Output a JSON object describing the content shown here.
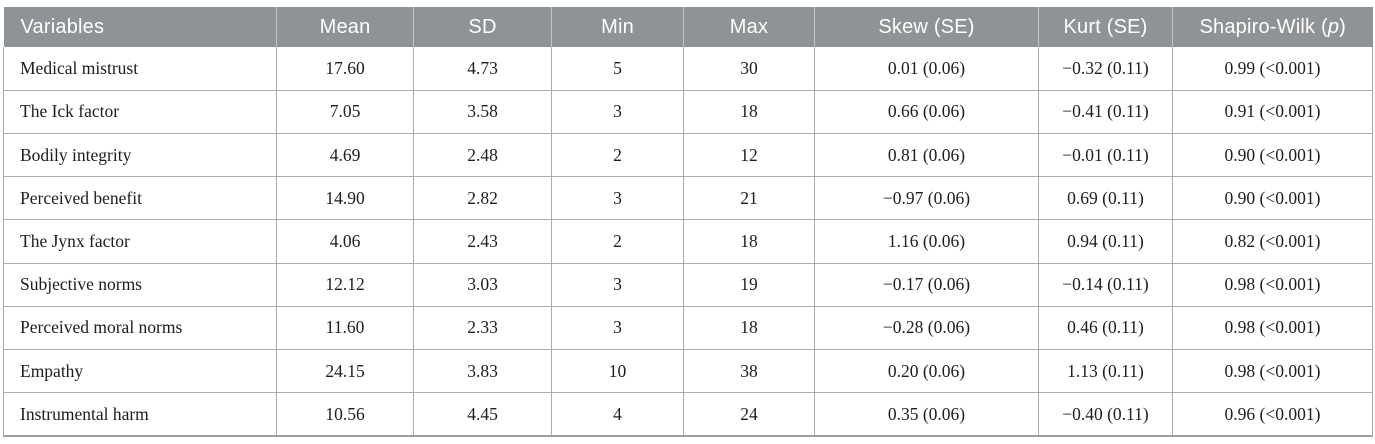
{
  "table": {
    "headers": {
      "variables": "Variables",
      "mean": "Mean",
      "sd": "SD",
      "min": "Min",
      "max": "Max",
      "skew": "Skew (SE)",
      "kurt": "Kurt (SE)",
      "sw_prefix": "Shapiro-Wilk (",
      "sw_italic": "p",
      "sw_suffix": ")"
    },
    "rows": [
      {
        "variable": "Medical mistrust",
        "mean": "17.60",
        "sd": "4.73",
        "min": "5",
        "max": "30",
        "skew": "0.01 (0.06)",
        "kurt": "−0.32 (0.11)",
        "sw": "0.99 (<0.001)"
      },
      {
        "variable": "The Ick factor",
        "mean": "7.05",
        "sd": "3.58",
        "min": "3",
        "max": "18",
        "skew": "0.66 (0.06)",
        "kurt": "−0.41 (0.11)",
        "sw": "0.91 (<0.001)"
      },
      {
        "variable": "Bodily integrity",
        "mean": "4.69",
        "sd": "2.48",
        "min": "2",
        "max": "12",
        "skew": "0.81 (0.06)",
        "kurt": "−0.01 (0.11)",
        "sw": "0.90 (<0.001)"
      },
      {
        "variable": "Perceived benefit",
        "mean": "14.90",
        "sd": "2.82",
        "min": "3",
        "max": "21",
        "skew": "−0.97 (0.06)",
        "kurt": "0.69 (0.11)",
        "sw": "0.90 (<0.001)"
      },
      {
        "variable": "The Jynx factor",
        "mean": "4.06",
        "sd": "2.43",
        "min": "2",
        "max": "18",
        "skew": "1.16 (0.06)",
        "kurt": "0.94 (0.11)",
        "sw": "0.82 (<0.001)"
      },
      {
        "variable": "Subjective norms",
        "mean": "12.12",
        "sd": "3.03",
        "min": "3",
        "max": "19",
        "skew": "−0.17 (0.06)",
        "kurt": "−0.14 (0.11)",
        "sw": "0.98 (<0.001)"
      },
      {
        "variable": "Perceived moral norms",
        "mean": "11.60",
        "sd": "2.33",
        "min": "3",
        "max": "18",
        "skew": "−0.28 (0.06)",
        "kurt": "0.46 (0.11)",
        "sw": "0.98 (<0.001)"
      },
      {
        "variable": "Empathy",
        "mean": "24.15",
        "sd": "3.83",
        "min": "10",
        "max": "38",
        "skew": "0.20 (0.06)",
        "kurt": "1.13 (0.11)",
        "sw": "0.98 (<0.001)"
      },
      {
        "variable": "Instrumental harm",
        "mean": "10.56",
        "sd": "4.45",
        "min": "4",
        "max": "24",
        "skew": "0.35 (0.06)",
        "kurt": "−0.40 (0.11)",
        "sw": "0.96 (<0.001)"
      }
    ]
  },
  "colors": {
    "header_bg": "#8f9395",
    "header_text": "#ffffff",
    "body_border": "#aaadae",
    "body_text": "#1d1d1d"
  }
}
